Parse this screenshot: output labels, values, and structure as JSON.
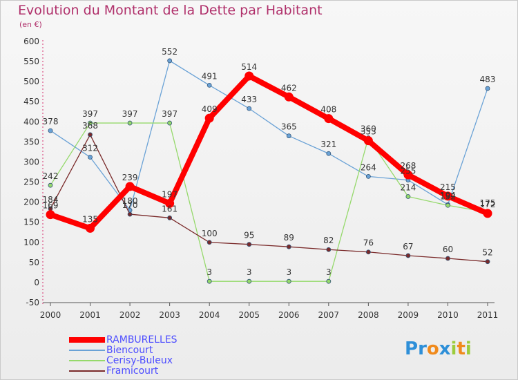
{
  "title": "Evolution du Montant de la Dette par Habitant",
  "unit": "(en €)",
  "logo": {
    "letters": [
      "P",
      "r",
      "o",
      "x",
      "i",
      "t",
      "i"
    ],
    "colors": [
      "#2e8fd8",
      "#2e8fd8",
      "#f08a1c",
      "#2e8fd8",
      "#9ccc3c",
      "#f08a1c",
      "#9ccc3c"
    ]
  },
  "chart_data": {
    "type": "line",
    "categories": [
      "2000",
      "2001",
      "2002",
      "2003",
      "2004",
      "2005",
      "2006",
      "2007",
      "2008",
      "2009",
      "2010",
      "2011"
    ],
    "ylim": [
      -50,
      600
    ],
    "yticks": [
      -50,
      0,
      50,
      100,
      150,
      200,
      250,
      300,
      350,
      400,
      450,
      500,
      550,
      600
    ],
    "grid": false,
    "legend": "bottom-left",
    "series": [
      {
        "name": "RAMBURELLES",
        "color": "#ff0000",
        "width": 8,
        "values": [
          169,
          135,
          239,
          197,
          409,
          514,
          462,
          408,
          353,
          268,
          215,
          172
        ]
      },
      {
        "name": "Biencourt",
        "color": "#6aa2d6",
        "width": 1.3,
        "values": [
          378,
          312,
          180,
          552,
          491,
          433,
          365,
          321,
          264,
          255,
          194,
          483
        ]
      },
      {
        "name": "Cerisy-Buleux",
        "color": "#95d96b",
        "width": 1.3,
        "values": [
          242,
          397,
          397,
          397,
          3,
          3,
          3,
          3,
          360,
          214,
          192,
          175
        ]
      },
      {
        "name": "Framicourt",
        "color": "#7a2a2a",
        "width": 1.3,
        "values": [
          184,
          368,
          170,
          161,
          100,
          95,
          89,
          82,
          76,
          67,
          60,
          52
        ]
      }
    ]
  }
}
